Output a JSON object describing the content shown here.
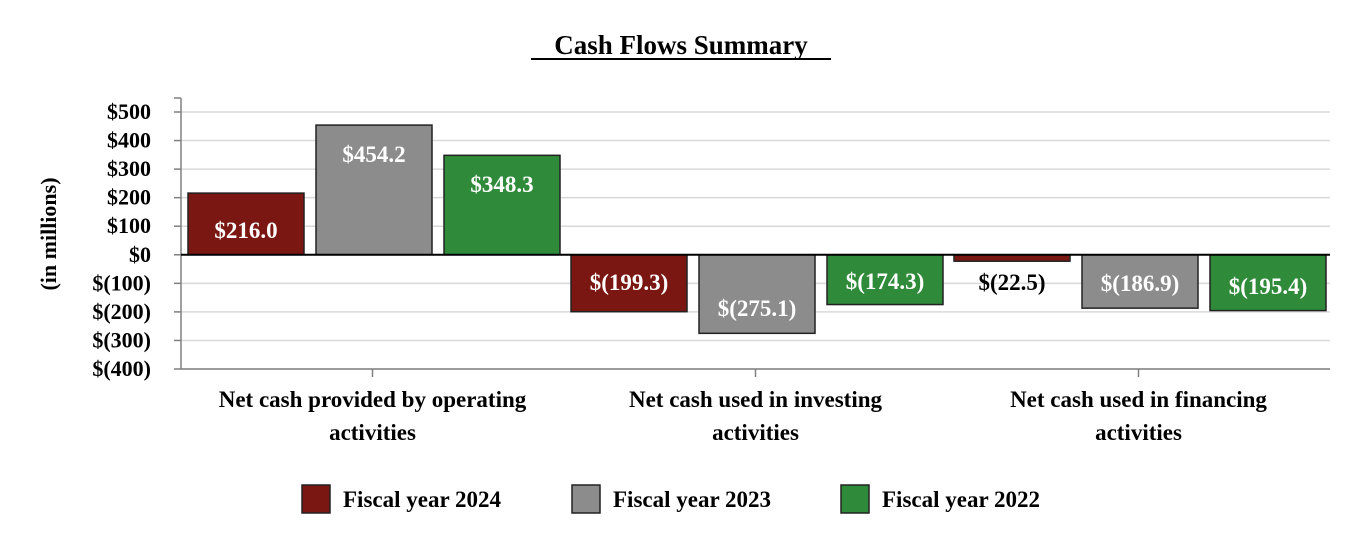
{
  "chart_data": {
    "type": "bar",
    "title": "Cash Flows Summary",
    "ylabel": "(in millions)",
    "xlabel": "",
    "ylim": [
      -400,
      500
    ],
    "yticks": [
      500,
      400,
      300,
      200,
      100,
      0,
      -100,
      -200,
      -300,
      -400
    ],
    "ytick_labels": [
      "$500",
      "$400",
      "$300",
      "$200",
      "$100",
      "$0",
      "$(100)",
      "$(200)",
      "$(300)",
      "$(400)"
    ],
    "grid": true,
    "legend_position": "bottom",
    "categories": [
      [
        "Net cash provided by operating",
        "activities"
      ],
      [
        "Net cash used in investing",
        "activities"
      ],
      [
        "Net cash used in financing",
        "activities"
      ]
    ],
    "series": [
      {
        "name": "Fiscal year 2024",
        "color": "#7b1712",
        "values": [
          216.0,
          -199.3,
          -22.5
        ],
        "labels": [
          "$216.0",
          "$(199.3)",
          "$(22.5)"
        ]
      },
      {
        "name": "Fiscal year 2023",
        "color": "#8c8c8c",
        "values": [
          454.2,
          -275.1,
          -186.9
        ],
        "labels": [
          "$454.2",
          "$(275.1)",
          "$(186.9)"
        ]
      },
      {
        "name": "Fiscal year 2022",
        "color": "#2f8a3a",
        "values": [
          348.3,
          -174.3,
          -195.4
        ],
        "labels": [
          "$348.3",
          "$(174.3)",
          "$(195.4)"
        ]
      }
    ]
  }
}
